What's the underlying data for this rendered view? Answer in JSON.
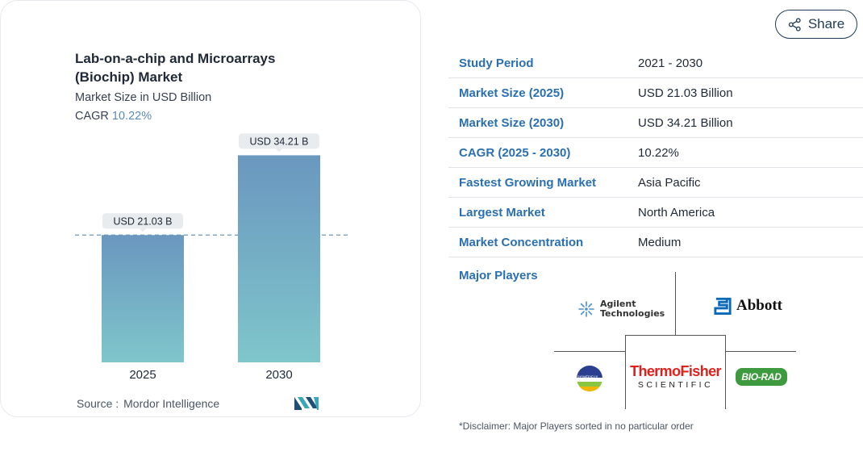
{
  "chart_data": {
    "type": "bar",
    "title": "Lab-on-a-chip and Microarrays (Biochip) Market",
    "subtitle": "Market Size in USD Billion",
    "cagr_label": "CAGR",
    "cagr_value": "10.22%",
    "categories": [
      "2025",
      "2030"
    ],
    "values": [
      21.03,
      34.21
    ],
    "data_labels": [
      "USD 21.03 B",
      "USD 34.21 B"
    ],
    "ylim": [
      0,
      38
    ],
    "grid": false,
    "reference_line": 21.03,
    "colors": {
      "bar_top": "#6a97bf",
      "bar_bottom": "#7fc6cb",
      "label_bg": "#e8ecef",
      "ref_line": "#6b97b8"
    },
    "source_label": "Source :",
    "source_name": "Mordor Intelligence"
  },
  "share": {
    "label": "Share",
    "icon": "share-icon"
  },
  "info_table": [
    {
      "label": "Study Period",
      "value": "2021 - 2030"
    },
    {
      "label": "Market Size (2025)",
      "value": "USD 21.03 Billion"
    },
    {
      "label": "Market Size (2030)",
      "value": "USD 34.21 Billion"
    },
    {
      "label": "CAGR (2025 - 2030)",
      "value": "10.22%"
    },
    {
      "label": "Fastest Growing Market",
      "value": "Asia Pacific"
    },
    {
      "label": "Largest Market",
      "value": "North America"
    },
    {
      "label": "Market Concentration",
      "value": "Medium"
    }
  ],
  "major_players": {
    "label": "Major Players",
    "logos": {
      "agilent": "Agilent Technologies",
      "abbott": "Abbott",
      "biomerieux": "BIOMÉRIEUX",
      "thermo_line1": "ThermoFisher",
      "thermo_line2": "SCIENTIFIC",
      "biorad": "BIO-RAD"
    }
  },
  "disclaimer": "*Disclaimer: Major Players sorted in no particular order",
  "accent_colors": {
    "table_label": "#2a6fb0",
    "cagr": "#5b8ab5",
    "share_border": "#1f3b57"
  }
}
